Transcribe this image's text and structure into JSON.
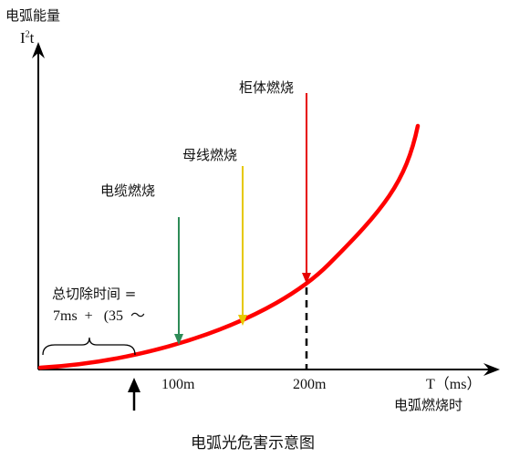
{
  "diagram": {
    "y_axis_title_zh": "电弧能量",
    "y_axis_symbol": "I",
    "y_axis_superscript": "2",
    "y_axis_suffix": "t",
    "x_axis_label": "T（ms）",
    "x_axis_title_zh": "电弧燃烧时",
    "x_ticks": [
      "100m",
      "200m"
    ],
    "clear_time_line1": "总切除时间 =",
    "clear_time_line2": "7ms  +   (35  ～",
    "events": [
      {
        "label": "电缆燃烧",
        "color": "#2e8b57"
      },
      {
        "label": "母线燃烧",
        "color": "#e6c800"
      },
      {
        "label": "柜体燃烧",
        "color": "#e60000"
      }
    ],
    "curve_color": "#ff0000",
    "caption": "电弧光危害示意图"
  }
}
